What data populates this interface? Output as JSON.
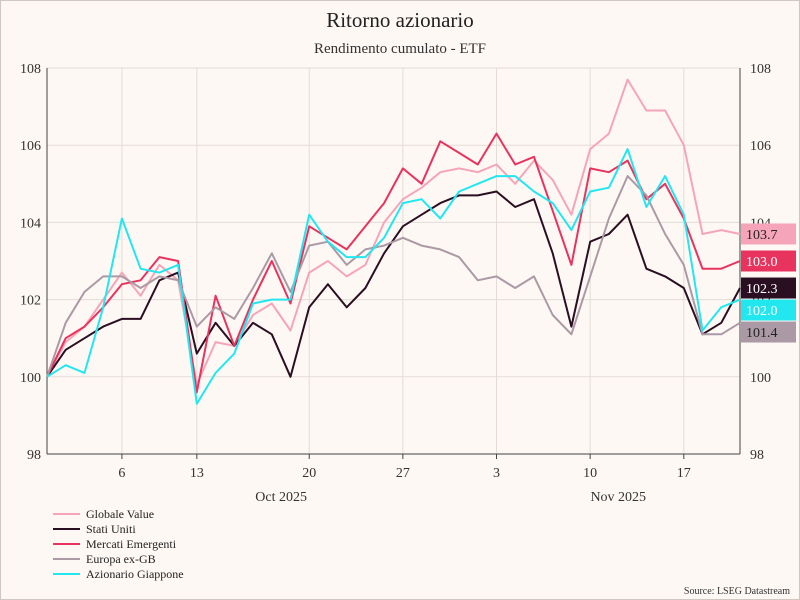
{
  "chart_data": {
    "type": "line",
    "title": "Ritorno azionario",
    "subtitle": "Rendimento cumulato - ETF",
    "ylim": [
      98,
      108
    ],
    "yticks": [
      98,
      100,
      102,
      104,
      106,
      108
    ],
    "xlim": [
      0,
      37
    ],
    "xticks": [
      {
        "x": 4,
        "label": "6"
      },
      {
        "x": 8,
        "label": "13"
      },
      {
        "x": 14,
        "label": "20"
      },
      {
        "x": 19,
        "label": "27"
      },
      {
        "x": 24,
        "label": "3"
      },
      {
        "x": 29,
        "label": "10"
      },
      {
        "x": 34,
        "label": "17"
      }
    ],
    "months": [
      {
        "x": 12.5,
        "label": "Oct 2025"
      },
      {
        "x": 30.5,
        "label": "Nov 2025"
      }
    ],
    "grid": true,
    "legend_position": "bottom-left",
    "series": [
      {
        "name": "Globale Value",
        "color": "#f6a5b9",
        "end_label": "103.7",
        "values": [
          100.0,
          100.9,
          101.3,
          102.0,
          102.7,
          102.1,
          102.9,
          102.5,
          99.8,
          100.9,
          100.8,
          101.6,
          101.9,
          101.2,
          102.7,
          103.0,
          102.6,
          102.9,
          104.0,
          104.6,
          104.9,
          105.3,
          105.4,
          105.3,
          105.5,
          105.0,
          105.6,
          105.1,
          104.2,
          105.9,
          106.3,
          107.7,
          106.9,
          106.9,
          106.0,
          103.7,
          103.8,
          103.7
        ]
      },
      {
        "name": "Stati Uniti",
        "color": "#2a0f22",
        "end_label": "102.3",
        "values": [
          100.0,
          100.7,
          101.0,
          101.3,
          101.5,
          101.5,
          102.5,
          102.7,
          100.6,
          101.4,
          100.8,
          101.4,
          101.1,
          100.0,
          101.8,
          102.4,
          101.8,
          102.3,
          103.2,
          103.9,
          104.2,
          104.5,
          104.7,
          104.7,
          104.8,
          104.4,
          104.6,
          103.2,
          101.3,
          103.5,
          103.7,
          104.2,
          102.8,
          102.6,
          102.3,
          101.1,
          101.4,
          102.3
        ]
      },
      {
        "name": "Mercati Emergenti",
        "color": "#e8335e",
        "end_label": "103.0",
        "values": [
          100.0,
          101.0,
          101.3,
          101.8,
          102.4,
          102.5,
          103.1,
          103.0,
          99.6,
          102.1,
          100.8,
          102.0,
          103.0,
          101.9,
          103.9,
          103.6,
          103.3,
          103.9,
          104.5,
          105.4,
          105.0,
          106.1,
          105.8,
          105.5,
          106.3,
          105.5,
          105.7,
          104.3,
          102.9,
          105.4,
          105.3,
          105.6,
          104.6,
          105.0,
          104.1,
          102.8,
          102.8,
          103.0
        ]
      },
      {
        "name": "Europa ex-GB",
        "color": "#ab9aa6",
        "end_label": "101.4",
        "values": [
          100.0,
          101.4,
          102.2,
          102.6,
          102.6,
          102.3,
          102.6,
          102.5,
          101.3,
          101.8,
          101.5,
          102.3,
          103.2,
          102.2,
          103.4,
          103.5,
          102.9,
          103.3,
          103.4,
          103.6,
          103.4,
          103.3,
          103.1,
          102.5,
          102.6,
          102.3,
          102.6,
          101.6,
          101.1,
          102.6,
          104.1,
          105.2,
          104.7,
          103.7,
          102.9,
          101.1,
          101.1,
          101.4
        ]
      },
      {
        "name": "Azionario Giappone",
        "color": "#22e7ef",
        "end_label": "102.0",
        "values": [
          100.0,
          100.3,
          100.1,
          101.8,
          104.1,
          102.8,
          102.7,
          102.9,
          99.3,
          100.1,
          100.6,
          101.9,
          102.0,
          102.0,
          104.2,
          103.5,
          103.1,
          103.1,
          103.6,
          104.5,
          104.6,
          104.1,
          104.8,
          105.0,
          105.2,
          105.2,
          104.8,
          104.5,
          103.8,
          104.8,
          104.9,
          105.9,
          104.4,
          105.2,
          104.2,
          101.2,
          101.8,
          102.0
        ]
      }
    ],
    "source": "Source: LSEG Datastream"
  }
}
